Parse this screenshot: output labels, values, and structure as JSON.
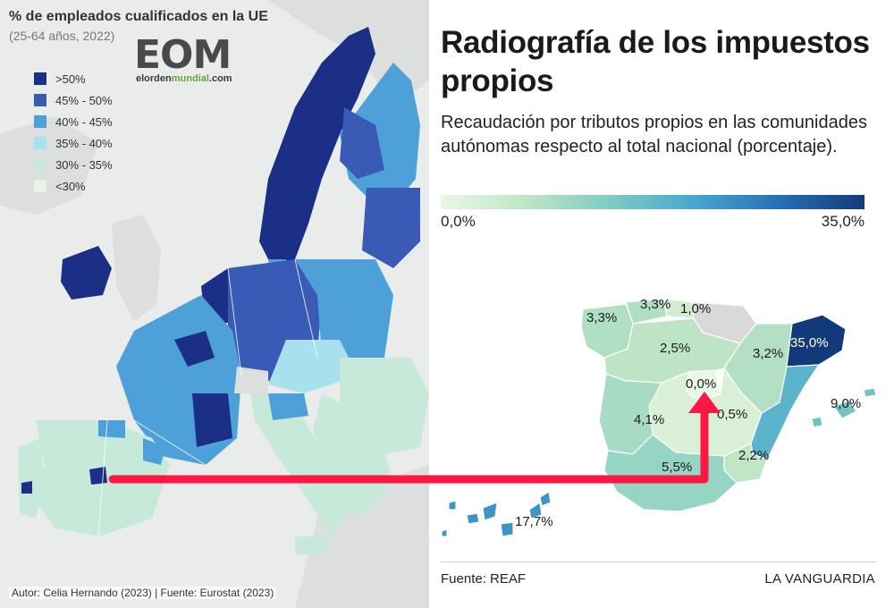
{
  "eu_map": {
    "title": "% de empleados cualificados en la UE",
    "subtitle": "(25-64 años, 2022)",
    "logo": {
      "text": "EOM",
      "url_prefix": "elorden",
      "url_highlight": "mundial",
      "url_suffix": ".com"
    },
    "legend": [
      {
        "label": ">50%",
        "color": "#1b2f86"
      },
      {
        "label": "45% - 50%",
        "color": "#3a5bb5"
      },
      {
        "label": "40% - 45%",
        "color": "#4da1d8"
      },
      {
        "label": "35% - 40%",
        "color": "#a9e0ee"
      },
      {
        "label": "30% - 35%",
        "color": "#c6e9da"
      },
      {
        "label": "<30%",
        "color": "#e7f4e3"
      }
    ],
    "credit": "Autor: Celia Hernando (2023) | Fuente: Eurostat (2023)"
  },
  "spain_map": {
    "title": "Radiografía de los impuestos propios",
    "subtitle": "Recaudación por tributos propios en las comunidades autónomas respecto al total nacional (porcentaje).",
    "scale": {
      "min_label": "0,0%",
      "max_label": "35,0%",
      "min_color": "#eaf7e4",
      "max_color": "#123a7a"
    },
    "regions": [
      {
        "name": "Galicia",
        "label": "3,3%",
        "value": 3.3
      },
      {
        "name": "Asturias",
        "label": "3,3%",
        "value": 3.3
      },
      {
        "name": "Cantabria",
        "label": "1,0%",
        "value": 1.0
      },
      {
        "name": "Castilla y León",
        "label": "2,5%",
        "value": 2.5
      },
      {
        "name": "Aragón",
        "label": "3,2%",
        "value": 3.2
      },
      {
        "name": "Cataluña",
        "label": "35,0%",
        "value": 35.0
      },
      {
        "name": "Madrid",
        "label": "0,0%",
        "value": 0.0
      },
      {
        "name": "Castilla-La Mancha",
        "label": "0,5%",
        "value": 0.5
      },
      {
        "name": "Extremadura",
        "label": "4,1%",
        "value": 4.1
      },
      {
        "name": "Baleares",
        "label": "9,0%",
        "value": 9.0
      },
      {
        "name": "Murcia",
        "label": "2,2%",
        "value": 2.2
      },
      {
        "name": "Andalucía",
        "label": "5,5%",
        "value": 5.5
      },
      {
        "name": "Canarias",
        "label": "17,7%",
        "value": 17.7
      }
    ],
    "source": "Fuente: REAF",
    "brand": "LA VANGUARDIA"
  },
  "colors": {
    "arrow": "#ff1744",
    "no_data": "#d9d9d9"
  }
}
